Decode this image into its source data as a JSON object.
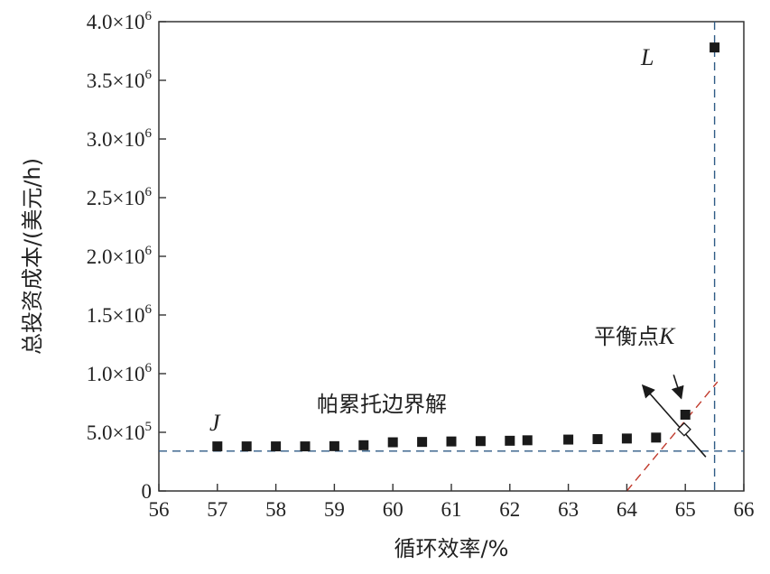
{
  "chart_data": {
    "type": "scatter",
    "title": "",
    "xlabel": "循环效率/%",
    "ylabel": "总投资成本/(美元/h)",
    "xlim": [
      56,
      66
    ],
    "ylim": [
      0,
      4000000
    ],
    "x_ticks": [
      56,
      57,
      58,
      59,
      60,
      61,
      62,
      63,
      64,
      65,
      66
    ],
    "x_tick_labels": [
      "56",
      "57",
      "58",
      "59",
      "60",
      "61",
      "62",
      "63",
      "64",
      "65",
      "66"
    ],
    "y_ticks": [
      0,
      500000,
      1000000,
      1500000,
      2000000,
      2500000,
      3000000,
      3500000,
      4000000
    ],
    "y_tick_labels": [
      {
        "mant": "0",
        "exp": ""
      },
      {
        "mant": "5.0×10",
        "exp": "5"
      },
      {
        "mant": "1.0×10",
        "exp": "6"
      },
      {
        "mant": "1.5×10",
        "exp": "6"
      },
      {
        "mant": "2.0×10",
        "exp": "6"
      },
      {
        "mant": "2.5×10",
        "exp": "6"
      },
      {
        "mant": "3.0×10",
        "exp": "6"
      },
      {
        "mant": "3.5×10",
        "exp": "6"
      },
      {
        "mant": "4.0×10",
        "exp": "6"
      }
    ],
    "grid": false,
    "series": [
      {
        "marker": "filled-square",
        "color": "#1a1a1a",
        "points": [
          [
            57.0,
            380000
          ],
          [
            57.5,
            380000
          ],
          [
            58.0,
            380000
          ],
          [
            58.5,
            380000
          ],
          [
            59.0,
            382000
          ],
          [
            59.5,
            390000
          ],
          [
            60.0,
            415000
          ],
          [
            60.5,
            418000
          ],
          [
            61.0,
            422000
          ],
          [
            61.5,
            425000
          ],
          [
            62.0,
            428000
          ],
          [
            62.3,
            432000
          ],
          [
            63.0,
            438000
          ],
          [
            63.5,
            442000
          ],
          [
            64.0,
            447000
          ],
          [
            64.5,
            455000
          ],
          [
            65.0,
            650000
          ],
          [
            65.5,
            3780000
          ]
        ]
      }
    ],
    "equilibrium_point": {
      "x": 64.98,
      "y": 525000,
      "marker": "open-diamond"
    },
    "reference_lines": [
      {
        "kind": "horizontal",
        "y": 340000,
        "color": "#2f5b86",
        "style": "dashed"
      },
      {
        "kind": "vertical",
        "x": 65.5,
        "color": "#2f5b86",
        "style": "dashed"
      },
      {
        "kind": "diagonal",
        "from": [
          64.0,
          0
        ],
        "to": [
          65.55,
          930000
        ],
        "color": "#c0392b",
        "style": "dashed"
      }
    ],
    "ideal_direction_arrow": {
      "from": [
        65.35,
        290000
      ],
      "to": [
        64.27,
        900000
      ]
    },
    "pointer_arrow": {
      "from": [
        64.8,
        990000
      ],
      "to": [
        64.93,
        790000
      ]
    },
    "annotations": {
      "j_label": "J",
      "l_label": "L",
      "k_label_text": "平衡点",
      "k_label_letter": "K",
      "pareto_label": "帕累托边界解"
    },
    "colors": {
      "axis": "#333333",
      "point": "#1a1a1a",
      "blue_dash": "#2f5b86",
      "red_dash": "#c0392b"
    }
  }
}
